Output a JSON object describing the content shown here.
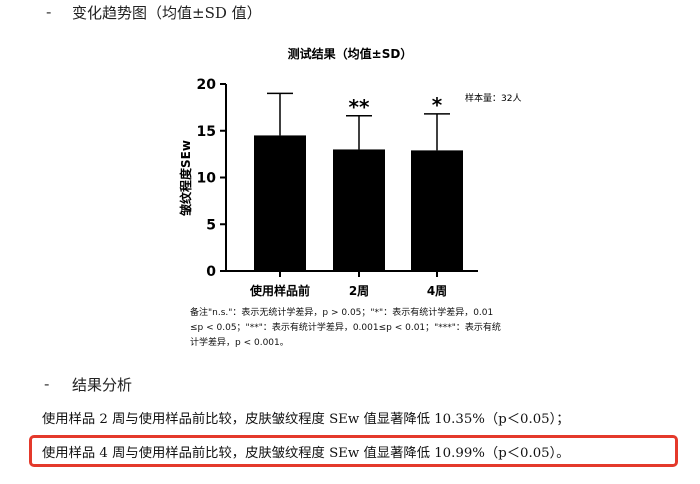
{
  "section1": {
    "bullet": "-",
    "title": "变化趋势图（均值±SD 值）"
  },
  "chart_data": {
    "type": "bar",
    "title": "测试结果（均值±SD）",
    "ylabel": "皱纹程度SEw",
    "xlabel": "",
    "categories": [
      "使用样品前",
      "2周",
      "4周"
    ],
    "values": [
      14.5,
      13.0,
      12.9
    ],
    "error_sd": [
      4.5,
      3.6,
      3.9
    ],
    "significance": [
      "",
      "**",
      "*"
    ],
    "ylim": [
      0,
      20
    ],
    "yticks": [
      0,
      5,
      10,
      15,
      20
    ],
    "bar_color": "#000000",
    "annotation": "样本量：32人",
    "grid": false,
    "legend": "none"
  },
  "notes": {
    "lines": [
      "备注\"n.s.\"：表示无统计学差异，p > 0.05；\"*\"：表示有统计学差异，0.01",
      "≤p < 0.05；\"**\"：表示有统计学差异，0.001≤p < 0.01；\"***\"：表示有统",
      "计学差异，p < 0.001。"
    ]
  },
  "section2": {
    "bullet": "-",
    "title": "结果分析"
  },
  "results": [
    "使用样品 2 周与使用样品前比较，皮肤皱纹程度 SEw 值显著降低 10.35%（p＜0.05）；",
    "使用样品 4 周与使用样品前比较，皮肤皱纹程度 SEw 值显著降低 10.99%（p＜0.05）。"
  ],
  "colors": {
    "highlight_border": "#e4392b"
  }
}
